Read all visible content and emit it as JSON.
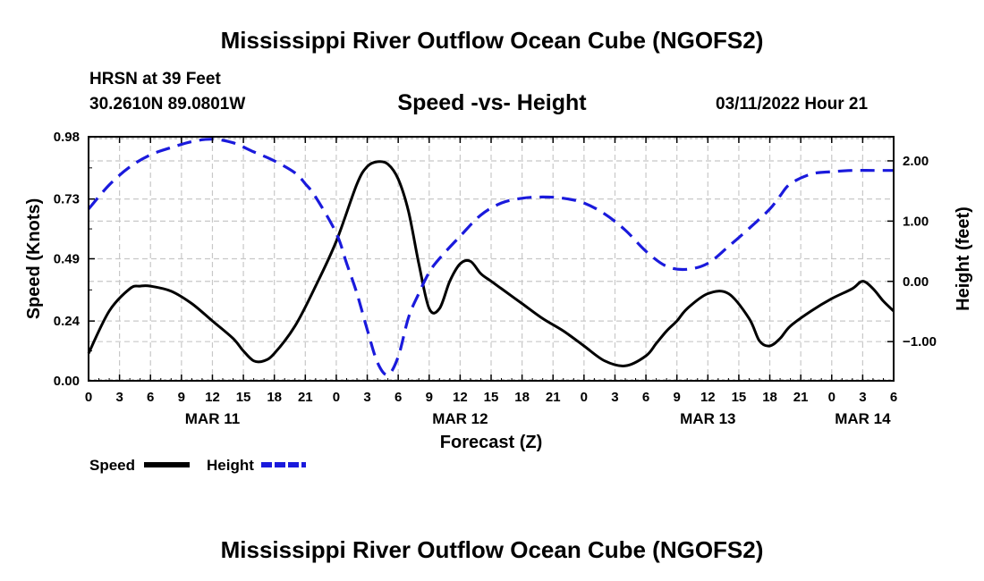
{
  "header": {
    "title": "Mississippi River Outflow Ocean Cube (NGOFS2)",
    "station": "HRSN at 39 Feet",
    "location": "30.2610N  89.0801W",
    "subtitle": "Speed -vs- Height",
    "timestamp": "03/11/2022 Hour 21"
  },
  "footer": {
    "title": "Mississippi River Outflow Ocean Cube (NGOFS2)"
  },
  "colors": {
    "speed": "#000000",
    "height": "#1a1adc",
    "grid": "#c8c8c8"
  },
  "chart_data": {
    "type": "line",
    "title": "Speed -vs- Height",
    "xlabel": "Forecast (Z)",
    "ylabel": "Speed (Knots)",
    "y2label": "Height (feet)",
    "x_unit": "hours from MAR 11 00Z",
    "xlim": [
      0,
      78
    ],
    "ylim": [
      0,
      0.98
    ],
    "y2lim": [
      -1.65,
      2.4
    ],
    "x_ticks": [
      0,
      3,
      6,
      9,
      12,
      15,
      18,
      21,
      24,
      27,
      30,
      33,
      36,
      39,
      42,
      45,
      48,
      51,
      54,
      57,
      60,
      63,
      66,
      69,
      72,
      75,
      78
    ],
    "x_tick_labels": [
      "0",
      "3",
      "6",
      "9",
      "12",
      "15",
      "18",
      "21",
      "0",
      "3",
      "6",
      "9",
      "12",
      "15",
      "18",
      "21",
      "0",
      "3",
      "6",
      "9",
      "12",
      "15",
      "18",
      "21",
      "0",
      "3",
      "6"
    ],
    "date_labels": [
      {
        "x": 12,
        "label": "MAR 11"
      },
      {
        "x": 36,
        "label": "MAR 12"
      },
      {
        "x": 60,
        "label": "MAR 13"
      },
      {
        "x": 75,
        "label": "MAR 14"
      }
    ],
    "y_ticks": [
      0.0,
      0.24,
      0.49,
      0.73,
      0.98
    ],
    "y_tick_labels": [
      "0.00",
      "0.24",
      "0.49",
      "0.73",
      "0.98"
    ],
    "y2_ticks": [
      -1.0,
      0.0,
      1.0,
      2.0
    ],
    "y2_tick_labels": [
      "−1.00",
      "0.00",
      "1.00",
      "2.00"
    ],
    "legend": [
      {
        "name": "Speed",
        "color": "#000000",
        "style": "solid"
      },
      {
        "name": "Height",
        "color": "#1a1adc",
        "style": "dashed"
      }
    ],
    "series": [
      {
        "name": "Speed",
        "axis": "left",
        "x": [
          0,
          2,
          4,
          5,
          6,
          8,
          10,
          12,
          14,
          15,
          16,
          17,
          18,
          20,
          22,
          24,
          26,
          27,
          28,
          29,
          30,
          31,
          32,
          33,
          34,
          35,
          36,
          37,
          38,
          39,
          40,
          42,
          44,
          46,
          48,
          50,
          52,
          54,
          55,
          56,
          57,
          58,
          60,
          62,
          64,
          65,
          66,
          67,
          68,
          70,
          72,
          74,
          75,
          76,
          77,
          78
        ],
        "values": [
          0.11,
          0.28,
          0.37,
          0.38,
          0.38,
          0.36,
          0.31,
          0.24,
          0.17,
          0.12,
          0.08,
          0.08,
          0.11,
          0.22,
          0.38,
          0.56,
          0.79,
          0.86,
          0.88,
          0.87,
          0.81,
          0.68,
          0.47,
          0.29,
          0.29,
          0.4,
          0.47,
          0.48,
          0.43,
          0.4,
          0.37,
          0.31,
          0.25,
          0.2,
          0.14,
          0.08,
          0.06,
          0.1,
          0.15,
          0.2,
          0.24,
          0.29,
          0.35,
          0.35,
          0.25,
          0.16,
          0.14,
          0.17,
          0.22,
          0.28,
          0.33,
          0.37,
          0.4,
          0.37,
          0.32,
          0.28
        ]
      },
      {
        "name": "Height",
        "axis": "right",
        "x": [
          0,
          2,
          4,
          6,
          8,
          10,
          12,
          14,
          16,
          18,
          20,
          21,
          22,
          24,
          25,
          26,
          27,
          28,
          29,
          30,
          31,
          32,
          33,
          34,
          36,
          38,
          40,
          42,
          44,
          46,
          48,
          50,
          52,
          54,
          56,
          58,
          60,
          62,
          64,
          66,
          67,
          68,
          70,
          72,
          74,
          76,
          78
        ],
        "values": [
          1.2,
          1.6,
          1.9,
          2.1,
          2.22,
          2.32,
          2.36,
          2.3,
          2.15,
          2.0,
          1.8,
          1.62,
          1.4,
          0.8,
          0.3,
          -0.2,
          -0.8,
          -1.35,
          -1.55,
          -1.25,
          -0.6,
          -0.2,
          0.15,
          0.38,
          0.75,
          1.1,
          1.3,
          1.38,
          1.4,
          1.38,
          1.3,
          1.12,
          0.85,
          0.5,
          0.25,
          0.2,
          0.3,
          0.58,
          0.88,
          1.2,
          1.42,
          1.62,
          1.78,
          1.82,
          1.84,
          1.84,
          1.84
        ]
      }
    ]
  }
}
